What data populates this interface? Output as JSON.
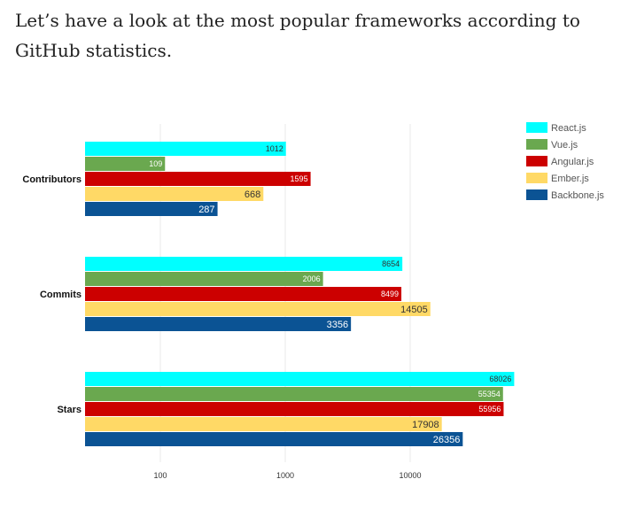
{
  "intro_text": "Let’s have a look at the most popular frameworks according to GitHub statistics.",
  "chart_data": {
    "type": "bar",
    "orientation": "horizontal",
    "x_scale": "log",
    "xlim": [
      25,
      150000
    ],
    "x_ticks": [
      100,
      1000,
      10000
    ],
    "x_tick_labels": [
      "100",
      "1000",
      "10000"
    ],
    "grid": true,
    "legend_position": "top-right",
    "categories": [
      "Contributors",
      "Commits",
      "Stars"
    ],
    "series": [
      {
        "name": "React.js",
        "color": "#00ffff",
        "label_color": "#333333",
        "values": [
          1012,
          8654,
          68026
        ]
      },
      {
        "name": "Vue.js",
        "color": "#6aa84f",
        "label_color": "#ffffff",
        "values": [
          109,
          2006,
          55354
        ]
      },
      {
        "name": "Angular.js",
        "color": "#cc0000",
        "label_color": "#ffffff",
        "values": [
          1595,
          8499,
          55956
        ]
      },
      {
        "name": "Ember.js",
        "color": "#ffd966",
        "label_color": "#333333",
        "values": [
          668,
          14505,
          17908
        ]
      },
      {
        "name": "Backbone.js",
        "color": "#0b5394",
        "label_color": "#ffffff",
        "values": [
          287,
          3356,
          26356
        ]
      }
    ]
  }
}
